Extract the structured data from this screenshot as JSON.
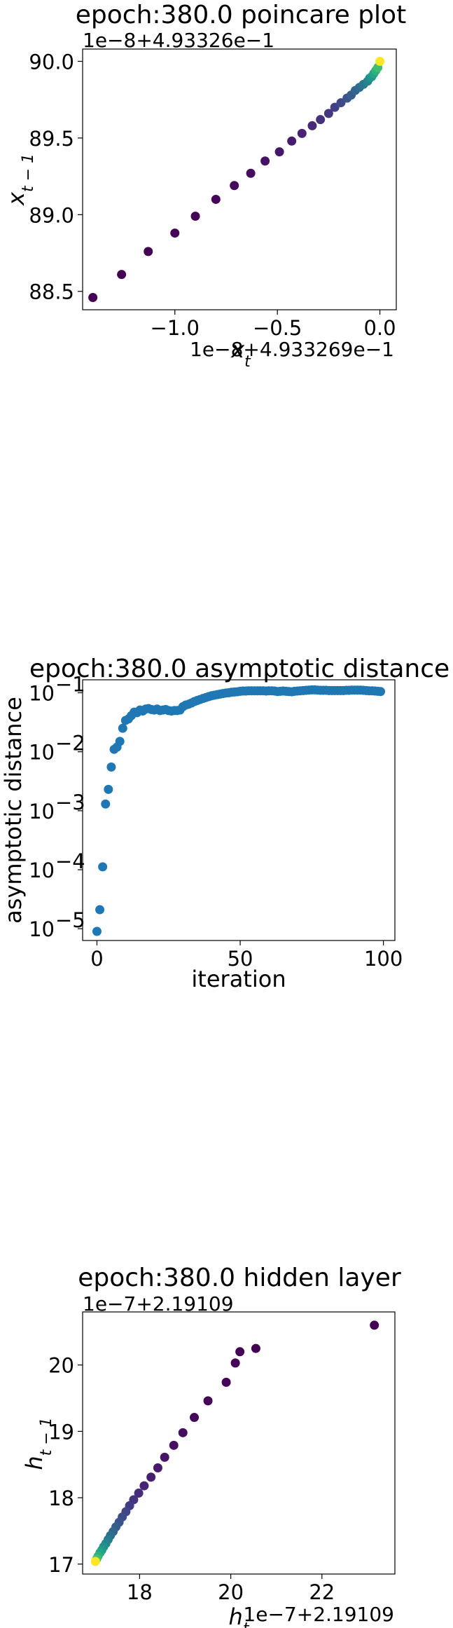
{
  "colors": {
    "viridis": [
      "#440154",
      "#482475",
      "#414487",
      "#355f8d",
      "#2a788e",
      "#21918c",
      "#22a884",
      "#44bf70",
      "#7ad151",
      "#bddf26",
      "#fde725"
    ],
    "series": "#1f77b4"
  },
  "chart_data": [
    {
      "type": "scatter",
      "title": "epoch:380.0 poincare plot",
      "xlabel": "x_t",
      "ylabel": "x_{t-1}",
      "x_offset_text": "1e−8+4.933269e−1",
      "y_offset_text": "1e−8+4.93326e−1",
      "xlim": [
        -1.45,
        0.08
      ],
      "ylim": [
        88.38,
        90.08
      ],
      "x_ticks": [
        -1.0,
        -0.5,
        0.0
      ],
      "x_tick_labels": [
        "−1.0",
        "−0.5",
        "0.0"
      ],
      "y_ticks": [
        88.5,
        89.0,
        89.5,
        90.0
      ],
      "y_tick_labels": [
        "88.5",
        "89.0",
        "89.5",
        "90.0"
      ],
      "colormap": "viridis",
      "x": [
        -1.4,
        -1.26,
        -1.13,
        -1.0,
        -0.9,
        -0.8,
        -0.71,
        -0.63,
        -0.56,
        -0.49,
        -0.43,
        -0.38,
        -0.33,
        -0.29,
        -0.25,
        -0.22,
        -0.19,
        -0.16,
        -0.14,
        -0.12,
        -0.1,
        -0.08,
        -0.06,
        -0.05,
        -0.04,
        -0.03,
        -0.02,
        -0.01,
        0.0
      ],
      "y": [
        88.46,
        88.61,
        88.76,
        88.88,
        88.99,
        89.1,
        89.19,
        89.27,
        89.35,
        89.41,
        89.48,
        89.53,
        89.58,
        89.62,
        89.66,
        89.7,
        89.73,
        89.76,
        89.78,
        89.81,
        89.83,
        89.85,
        89.87,
        89.89,
        89.9,
        89.92,
        89.94,
        89.96,
        90.0
      ]
    },
    {
      "type": "scatter",
      "title": "epoch:380.0 asymptotic distance",
      "xlabel": "iteration",
      "ylabel": "asymptotic distance",
      "y_scale": "log",
      "xlim": [
        -5,
        104
      ],
      "ylim_log10": [
        -5.2,
        -0.78
      ],
      "x_ticks": [
        0,
        50,
        100
      ],
      "x_tick_labels": [
        "0",
        "50",
        "100"
      ],
      "y_ticks_log10": [
        -5,
        -4,
        -3,
        -2,
        -1
      ],
      "y_tick_labels": [
        "10",
        "10",
        "10",
        "10",
        "10"
      ],
      "y_tick_exponents": [
        "−5",
        "−4",
        "−3",
        "−2",
        "−1"
      ],
      "x": [
        0,
        1,
        2,
        3,
        4,
        5,
        6,
        7,
        8,
        9,
        10,
        11,
        12,
        13,
        14,
        15,
        16,
        17,
        18,
        19,
        20,
        21,
        22,
        23,
        24,
        25,
        26,
        27,
        28,
        29,
        30,
        31,
        32,
        33,
        34,
        35,
        36,
        37,
        38,
        39,
        40,
        41,
        42,
        43,
        44,
        45,
        46,
        47,
        48,
        49,
        50,
        51,
        52,
        53,
        54,
        55,
        56,
        57,
        58,
        59,
        60,
        61,
        62,
        63,
        64,
        65,
        66,
        67,
        68,
        69,
        70,
        71,
        72,
        73,
        74,
        75,
        76,
        77,
        78,
        79,
        80,
        81,
        82,
        83,
        84,
        85,
        86,
        87,
        88,
        89,
        90,
        91,
        92,
        93,
        94,
        95,
        96,
        97,
        98,
        99
      ],
      "y": [
        9e-06,
        2.1e-05,
        0.000112,
        0.0013,
        0.0023,
        0.0055,
        0.011,
        0.012,
        0.015,
        0.025,
        0.034,
        0.036,
        0.041,
        0.047,
        0.046,
        0.051,
        0.049,
        0.053,
        0.054,
        0.052,
        0.051,
        0.053,
        0.05,
        0.051,
        0.052,
        0.05,
        0.049,
        0.05,
        0.05,
        0.051,
        0.058,
        0.062,
        0.064,
        0.067,
        0.071,
        0.074,
        0.077,
        0.08,
        0.083,
        0.086,
        0.089,
        0.091,
        0.093,
        0.095,
        0.097,
        0.099,
        0.1,
        0.102,
        0.103,
        0.104,
        0.106,
        0.107,
        0.107,
        0.108,
        0.108,
        0.108,
        0.108,
        0.108,
        0.108,
        0.107,
        0.108,
        0.108,
        0.107,
        0.105,
        0.106,
        0.107,
        0.106,
        0.105,
        0.104,
        0.106,
        0.107,
        0.108,
        0.109,
        0.11,
        0.111,
        0.112,
        0.112,
        0.111,
        0.11,
        0.11,
        0.11,
        0.109,
        0.109,
        0.109,
        0.109,
        0.109,
        0.109,
        0.11,
        0.11,
        0.111,
        0.111,
        0.111,
        0.111,
        0.11,
        0.109,
        0.108,
        0.108,
        0.107,
        0.106,
        0.105
      ]
    },
    {
      "type": "scatter",
      "title": "epoch:380.0 hidden layer",
      "xlabel": "h_t",
      "ylabel": "h_{t-1}",
      "x_offset_text": "1e−7+2.19109",
      "y_offset_text": "1e−7+2.19109",
      "xlim": [
        16.75,
        23.6
      ],
      "ylim": [
        16.85,
        20.8
      ],
      "x_ticks": [
        18,
        20,
        22
      ],
      "x_tick_labels": [
        "18",
        "20",
        "22"
      ],
      "y_ticks": [
        17,
        18,
        19,
        20
      ],
      "y_tick_labels": [
        "17",
        "18",
        "19",
        "20"
      ],
      "colormap": "viridis",
      "x": [
        23.15,
        20.55,
        20.2,
        20.1,
        19.9,
        19.5,
        19.2,
        18.95,
        18.75,
        18.55,
        18.4,
        18.25,
        18.1,
        17.98,
        17.87,
        17.78,
        17.7,
        17.62,
        17.55,
        17.48,
        17.42,
        17.36,
        17.31,
        17.26,
        17.21,
        17.17,
        17.13,
        17.09,
        17.06,
        17.03
      ],
      "y": [
        20.6,
        20.25,
        20.2,
        20.03,
        19.74,
        19.46,
        19.21,
        18.98,
        18.79,
        18.61,
        18.45,
        18.31,
        18.18,
        18.07,
        17.97,
        17.88,
        17.79,
        17.71,
        17.63,
        17.56,
        17.49,
        17.43,
        17.37,
        17.31,
        17.26,
        17.21,
        17.17,
        17.12,
        17.08,
        17.04
      ]
    }
  ]
}
